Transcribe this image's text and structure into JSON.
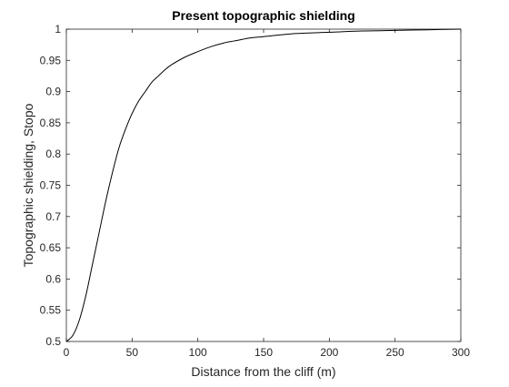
{
  "chart_data": {
    "type": "line",
    "title": "Present topographic shielding",
    "xlabel": "Distance from the cliff (m)",
    "ylabel": "Topographic shielding, Stopo",
    "xlim": [
      0,
      300
    ],
    "ylim": [
      0.5,
      1
    ],
    "xticks": [
      0,
      50,
      100,
      150,
      200,
      250,
      300
    ],
    "yticks": [
      0.5,
      0.55,
      0.6,
      0.65,
      0.7,
      0.75,
      0.8,
      0.85,
      0.9,
      0.95,
      1
    ],
    "xtick_labels": [
      "0",
      "50",
      "100",
      "150",
      "200",
      "250",
      "300"
    ],
    "ytick_labels": [
      "0.5",
      "0.55",
      "0.6",
      "0.65",
      "0.7",
      "0.75",
      "0.8",
      "0.85",
      "0.9",
      "0.95",
      "1"
    ],
    "grid": false,
    "series": [
      {
        "color": "#000000",
        "x": [
          0,
          5,
          10,
          15,
          20,
          25,
          30,
          35,
          40,
          45,
          50,
          55,
          60,
          65,
          70,
          75,
          80,
          90,
          100,
          110,
          120,
          130,
          140,
          150,
          175,
          200,
          225,
          250,
          275,
          300
        ],
        "y": [
          0.5,
          0.51,
          0.535,
          0.575,
          0.625,
          0.675,
          0.725,
          0.77,
          0.81,
          0.84,
          0.865,
          0.885,
          0.9,
          0.915,
          0.925,
          0.935,
          0.943,
          0.955,
          0.964,
          0.972,
          0.978,
          0.982,
          0.986,
          0.988,
          0.993,
          0.995,
          0.997,
          0.998,
          0.999,
          1.0
        ]
      }
    ]
  }
}
